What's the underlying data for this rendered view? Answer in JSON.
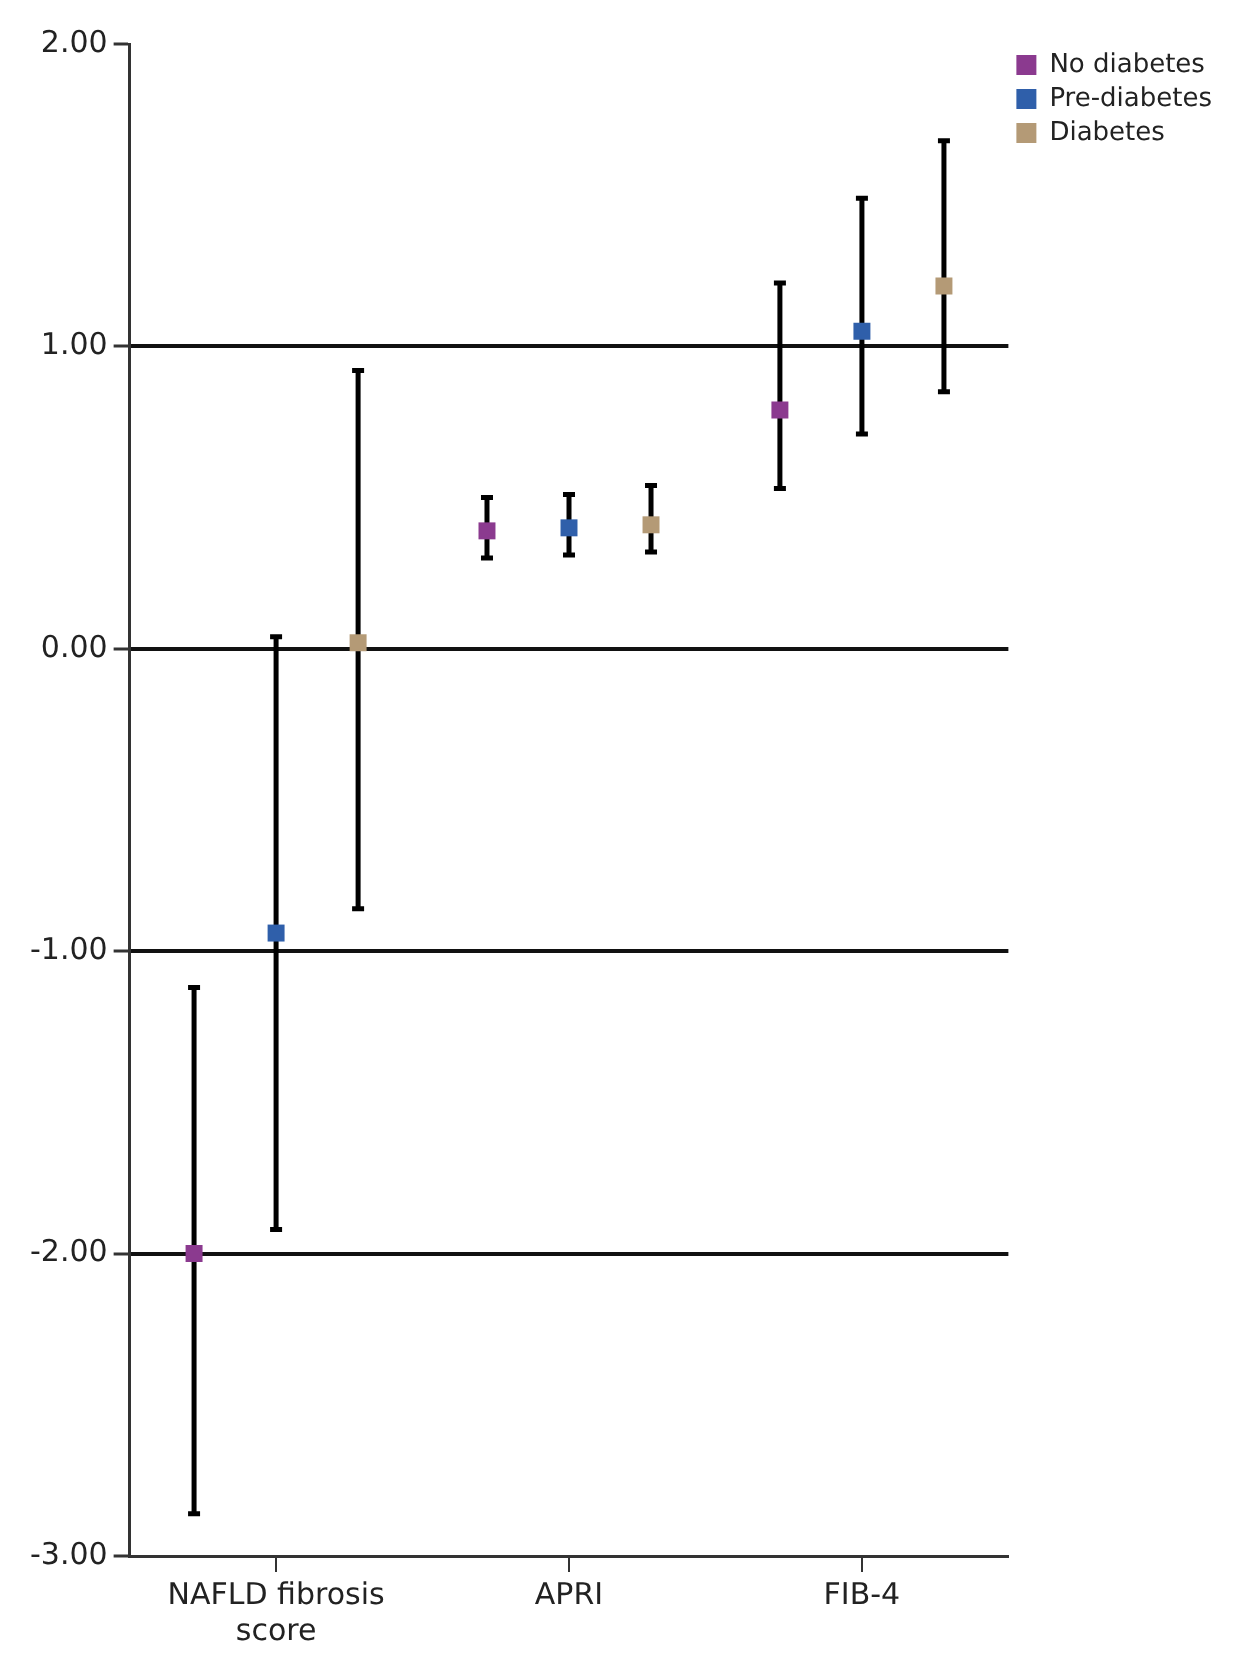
{
  "chart_data": {
    "type": "scatter",
    "categories": [
      "NAFLD fibrosis score",
      "APRI",
      "FIB-4"
    ],
    "series": [
      {
        "name": "No diabetes",
        "color": "#8b3a8f",
        "values": [
          -2.0,
          0.39,
          0.79
        ],
        "errors": [
          [
            -2.86,
            -1.12
          ],
          [
            0.3,
            0.5
          ],
          [
            0.53,
            1.21
          ]
        ]
      },
      {
        "name": "Pre-diabetes",
        "color": "#2f5faa",
        "values": [
          -0.94,
          0.4,
          1.05
        ],
        "errors": [
          [
            -1.92,
            0.04
          ],
          [
            0.31,
            0.51
          ],
          [
            0.71,
            1.49
          ]
        ]
      },
      {
        "name": "Diabetes",
        "color": "#b49a76",
        "values": [
          0.02,
          0.41,
          1.2
        ],
        "errors": [
          [
            -0.86,
            0.92
          ],
          [
            0.32,
            0.54
          ],
          [
            0.85,
            1.68
          ]
        ]
      }
    ],
    "ylim": [
      -3,
      2
    ],
    "yticks": [
      {
        "value": -3,
        "label": "-3.00"
      },
      {
        "value": -2,
        "label": "-2.00"
      },
      {
        "value": -1,
        "label": "-1.00"
      },
      {
        "value": 0,
        "label": "0.00"
      },
      {
        "value": 1,
        "label": "1.00"
      },
      {
        "value": 2,
        "label": "2.00"
      }
    ],
    "grid": "y",
    "legend": "top right",
    "marker": "square"
  }
}
